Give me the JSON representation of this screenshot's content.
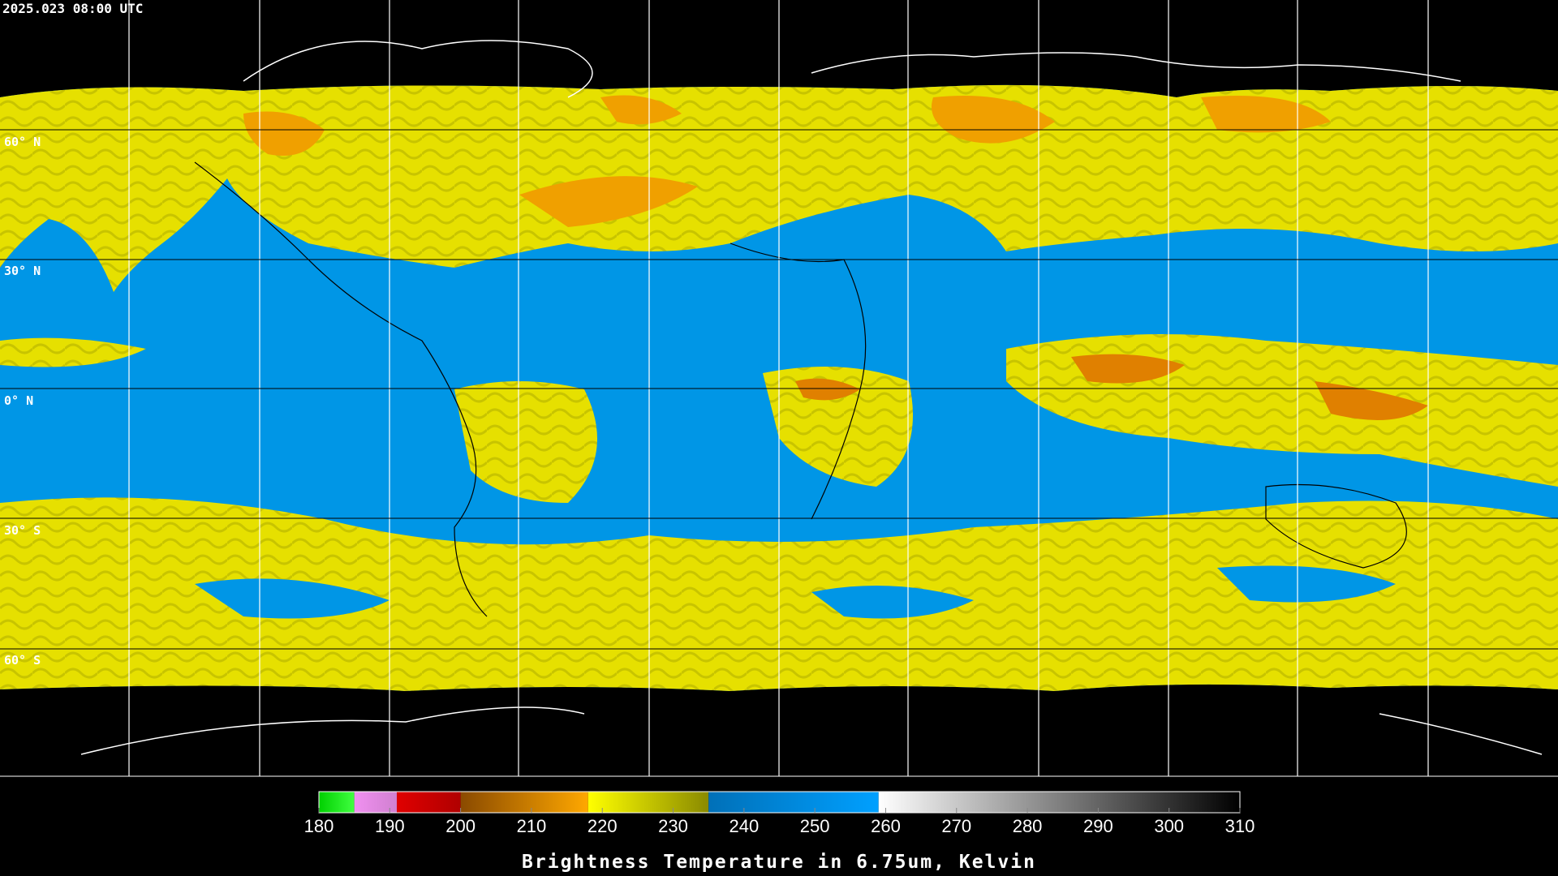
{
  "header": {
    "timestamp": "2025.023 08:00 UTC"
  },
  "map": {
    "latitude_labels": [
      "60° N",
      "30° N",
      "0° N",
      "30° S",
      "60° S"
    ]
  },
  "colorbar": {
    "label": "Brightness Temperature in 6.75um, Kelvin",
    "range": [
      180,
      310
    ],
    "ticks": [
      180,
      190,
      200,
      210,
      220,
      230,
      240,
      250,
      260,
      270,
      280,
      290,
      300,
      310
    ],
    "segments": [
      {
        "from": 180,
        "to": 185,
        "colors": [
          "#00d000",
          "#40ff40"
        ]
      },
      {
        "from": 185,
        "to": 191,
        "colors": [
          "#f090f0",
          "#d080d0"
        ]
      },
      {
        "from": 191,
        "to": 200,
        "colors": [
          "#e00000",
          "#b00000"
        ]
      },
      {
        "from": 200,
        "to": 218,
        "colors": [
          "#8a4a00",
          "#ffa800"
        ]
      },
      {
        "from": 218,
        "to": 235,
        "colors": [
          "#ffff00",
          "#8a8a00"
        ]
      },
      {
        "from": 235,
        "to": 259,
        "colors": [
          "#0070b8",
          "#00a0ff"
        ]
      },
      {
        "from": 259,
        "to": 310,
        "colors": [
          "#ffffff",
          "#000000"
        ]
      }
    ]
  }
}
